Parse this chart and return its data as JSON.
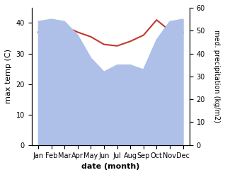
{
  "months": [
    "Jan",
    "Feb",
    "Mar",
    "Apr",
    "May",
    "Jun",
    "Jul",
    "Aug",
    "Sep",
    "Oct",
    "Nov",
    "Dec"
  ],
  "precipitation": [
    54,
    55,
    54,
    48,
    38,
    32,
    35,
    35,
    33,
    46,
    54,
    55
  ],
  "max_temp": [
    37,
    37,
    39,
    37,
    35.5,
    33,
    32.5,
    34,
    36,
    41,
    37.5,
    37
  ],
  "xlabel": "date (month)",
  "ylabel_left": "max temp (C)",
  "ylabel_right": "med. precipitation (kg/m2)",
  "ylim_left": [
    0,
    45
  ],
  "ylim_right": [
    0,
    60
  ],
  "yticks_left": [
    0,
    10,
    20,
    30,
    40
  ],
  "yticks_right": [
    0,
    10,
    20,
    30,
    40,
    50,
    60
  ],
  "precip_color": "#afc0e8",
  "temp_color": "#c0392b",
  "bg_color": "#ffffff"
}
